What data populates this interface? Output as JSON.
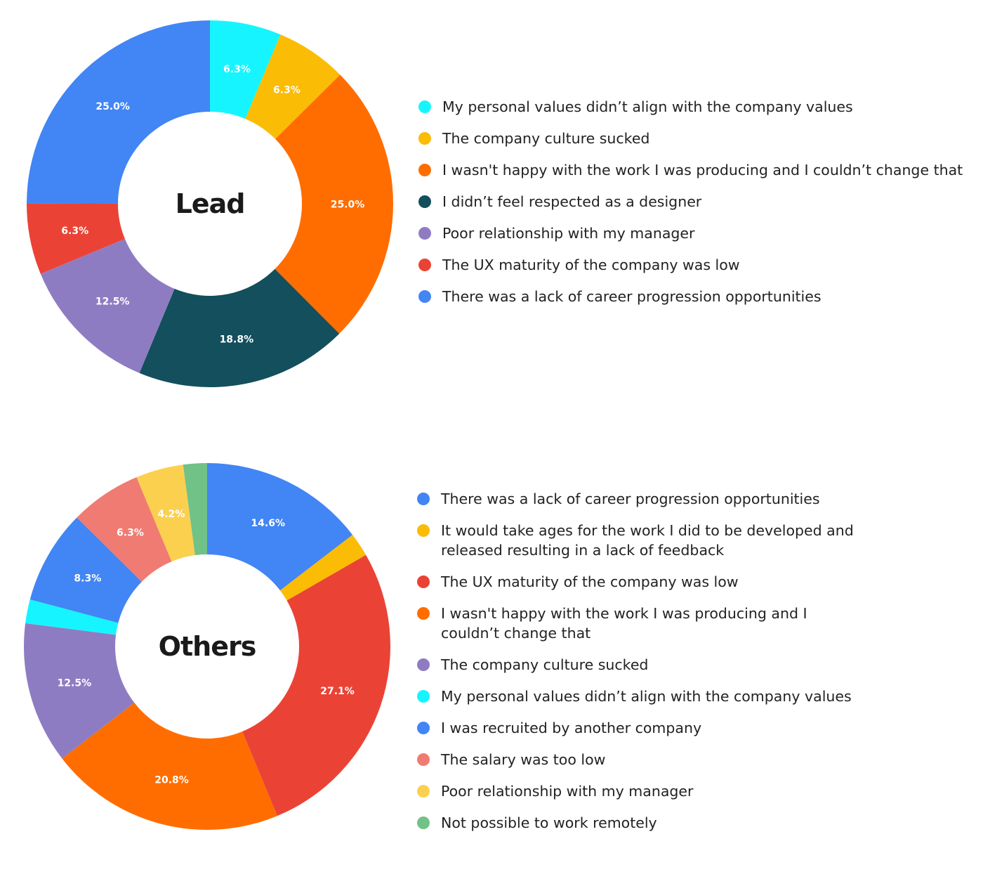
{
  "chart_data": [
    {
      "type": "pie",
      "title": "Lead",
      "slices": [
        {
          "label": "My personal values didn’t align with the company values",
          "value": 6.3,
          "display": "6.3%",
          "color": "#16F5FF"
        },
        {
          "label": "The company culture sucked",
          "value": 6.3,
          "display": "6.3%",
          "color": "#FBBC05"
        },
        {
          "label": "I wasn't happy with the work I was producing and I couldn’t change that",
          "value": 25.0,
          "display": "25.0%",
          "color": "#FF6D01"
        },
        {
          "label": "I didn’t feel respected as a designer",
          "value": 18.8,
          "display": "18.8%",
          "color": "#134F5C"
        },
        {
          "label": "Poor relationship with my manager",
          "value": 12.5,
          "display": "12.5%",
          "color": "#8E7CC3"
        },
        {
          "label": "The UX maturity of the company was low",
          "value": 6.3,
          "display": "6.3%",
          "color": "#EA4335"
        },
        {
          "label": "There was a lack of career progression opportunities",
          "value": 25.0,
          "display": "25.0%",
          "color": "#4285F4"
        }
      ]
    },
    {
      "type": "pie",
      "title": "Others",
      "slices": [
        {
          "label": "There was a lack of career progression opportunities",
          "value": 14.6,
          "display": "14.6%",
          "color": "#4285F4"
        },
        {
          "label": "It would take ages for the work I did to be developed and released resulting in a lack of feedback",
          "value": 2.1,
          "display": "",
          "color": "#FBBC05"
        },
        {
          "label": "The UX maturity of the company was low",
          "value": 27.1,
          "display": "27.1%",
          "color": "#EA4335"
        },
        {
          "label": "I wasn't happy with the work I was producing and I couldn’t change that",
          "value": 20.8,
          "display": "20.8%",
          "color": "#FF6D01"
        },
        {
          "label": "The company culture sucked",
          "value": 12.5,
          "display": "12.5%",
          "color": "#8E7CC3"
        },
        {
          "label": "My personal values didn’t align with the company values",
          "value": 2.1,
          "display": "",
          "color": "#16F5FF"
        },
        {
          "label": "I was recruited by another company",
          "value": 8.3,
          "display": "8.3%",
          "color": "#4285F4"
        },
        {
          "label": "The salary was too low",
          "value": 6.3,
          "display": "6.3%",
          "color": "#F07B72"
        },
        {
          "label": "Poor relationship with my manager",
          "value": 4.2,
          "display": "4.2%",
          "color": "#FCD04F"
        },
        {
          "label": "Not possible to work remotely",
          "value": 2.1,
          "display": "",
          "color": "#71C287"
        }
      ]
    }
  ]
}
